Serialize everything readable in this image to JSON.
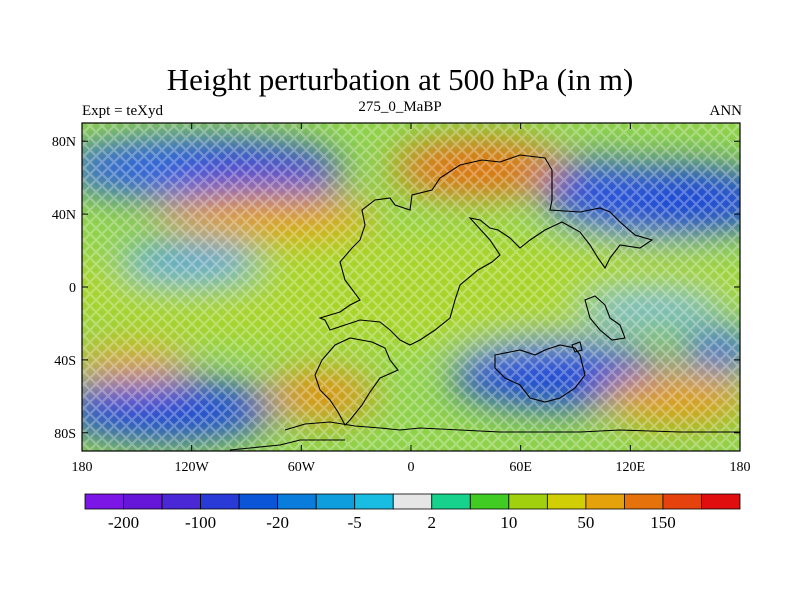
{
  "title": "Height perturbation at 500 hPa (in m)",
  "subtitle_left": "Expt = teXyd",
  "subtitle_center": "275_0_MaBP",
  "subtitle_right": "ANN",
  "map": {
    "projection": "cylindrical-equidistant",
    "lon_range": [
      -180,
      180
    ],
    "lat_range": [
      -90,
      90
    ],
    "coastline_color": "#000000",
    "fill_pattern": "cross-hatch overlay on filled contours"
  },
  "y_ticks": [
    {
      "lat": 80,
      "label": "80N"
    },
    {
      "lat": 40,
      "label": "40N"
    },
    {
      "lat": 0,
      "label": "0"
    },
    {
      "lat": -40,
      "label": "40S"
    },
    {
      "lat": -80,
      "label": "80S"
    }
  ],
  "x_ticks": [
    {
      "lon": -180,
      "label": "180"
    },
    {
      "lon": -120,
      "label": "120W"
    },
    {
      "lon": -60,
      "label": "60W"
    },
    {
      "lon": 0,
      "label": "0"
    },
    {
      "lon": 60,
      "label": "60E"
    },
    {
      "lon": 120,
      "label": "120E"
    },
    {
      "lon": 180,
      "label": "180"
    }
  ],
  "colorbar": {
    "colors": [
      "#7b16e6",
      "#6616d9",
      "#4a28d6",
      "#2a3ad6",
      "#0a55d8",
      "#0a7cdc",
      "#0e9ede",
      "#1abde2",
      "#e6e6e6",
      "#16d28c",
      "#40cc22",
      "#a0d00e",
      "#d2ce06",
      "#e6a20a",
      "#e6720c",
      "#e6420e",
      "#e00e0e"
    ],
    "labels": [
      "-200",
      "-100",
      "-20",
      "-5",
      "2",
      "10",
      "50",
      "150"
    ],
    "label_after_box": [
      0,
      2,
      4,
      6,
      8,
      10,
      12,
      14
    ]
  }
}
